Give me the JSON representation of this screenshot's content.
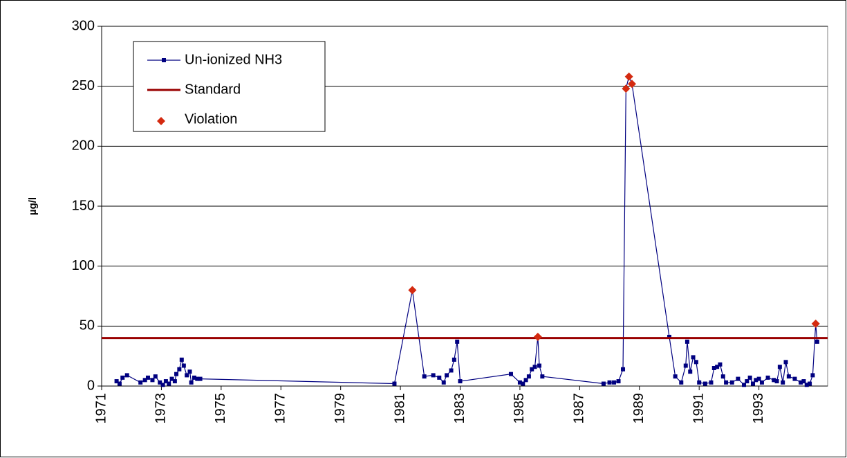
{
  "chart_data": {
    "type": "line",
    "ylabel": "µg/l",
    "xlim": [
      1971,
      1995.3
    ],
    "ylim": [
      0,
      300
    ],
    "xticks": [
      1971,
      1973,
      1975,
      1977,
      1979,
      1981,
      1983,
      1985,
      1987,
      1989,
      1991,
      1993
    ],
    "yticks": [
      0,
      50,
      100,
      150,
      200,
      250,
      300
    ],
    "grid": true,
    "legend": "upper left",
    "series": [
      {
        "name": "Un-ionized NH3",
        "type": "line",
        "color": "#000080",
        "x": [
          1971.5,
          1971.6,
          1971.7,
          1971.85,
          1972.3,
          1972.45,
          1972.55,
          1972.7,
          1972.8,
          1972.95,
          1973.05,
          1973.15,
          1973.25,
          1973.35,
          1973.45,
          1973.5,
          1973.6,
          1973.68,
          1973.75,
          1973.85,
          1973.95,
          1974.0,
          1974.1,
          1974.2,
          1974.3,
          1980.8,
          1981.4,
          1981.8,
          1982.1,
          1982.3,
          1982.45,
          1982.55,
          1982.7,
          1982.8,
          1982.9,
          1983.0,
          1984.7,
          1985.0,
          1985.1,
          1985.2,
          1985.3,
          1985.4,
          1985.5,
          1985.6,
          1985.65,
          1985.75,
          1987.8,
          1988.0,
          1988.15,
          1988.3,
          1988.45,
          1988.55,
          1988.65,
          1988.75,
          1990.0,
          1990.2,
          1990.4,
          1990.55,
          1990.6,
          1990.7,
          1990.8,
          1990.9,
          1991.0,
          1991.2,
          1991.4,
          1991.5,
          1991.6,
          1991.7,
          1991.8,
          1991.9,
          1992.1,
          1992.3,
          1992.5,
          1992.6,
          1992.7,
          1992.8,
          1992.9,
          1993.0,
          1993.1,
          1993.3,
          1993.5,
          1993.6,
          1993.7,
          1993.8,
          1993.9,
          1994.0,
          1994.2,
          1994.4,
          1994.5,
          1994.6,
          1994.7,
          1994.8,
          1994.9,
          1994.95
        ],
        "values": [
          4,
          2,
          7,
          9,
          3,
          5,
          7,
          5,
          8,
          3,
          1,
          4,
          2,
          6,
          4,
          10,
          14,
          22,
          17,
          9,
          12,
          3,
          7,
          6,
          6,
          2,
          80,
          8,
          9,
          7,
          3,
          9,
          13,
          22,
          37,
          4,
          10,
          3,
          2,
          5,
          8,
          14,
          16,
          41,
          17,
          8,
          2,
          3,
          3,
          4,
          14,
          248,
          258,
          252,
          41,
          8,
          3,
          17,
          37,
          12,
          24,
          20,
          3,
          2,
          3,
          15,
          16,
          18,
          8,
          3,
          3,
          6,
          1,
          4,
          7,
          2,
          5,
          6,
          3,
          7,
          5,
          4,
          16,
          3,
          20,
          8,
          6,
          3,
          4,
          1,
          2,
          9,
          52,
          37
        ]
      },
      {
        "name": "Standard",
        "type": "hline",
        "color": "#990000",
        "value": 40
      },
      {
        "name": "Violation",
        "type": "scatter",
        "color": "#d42a10",
        "x": [
          1981.4,
          1985.6,
          1988.55,
          1988.65,
          1988.75,
          1994.9
        ],
        "values": [
          80,
          41,
          248,
          258,
          252,
          52
        ]
      }
    ]
  }
}
